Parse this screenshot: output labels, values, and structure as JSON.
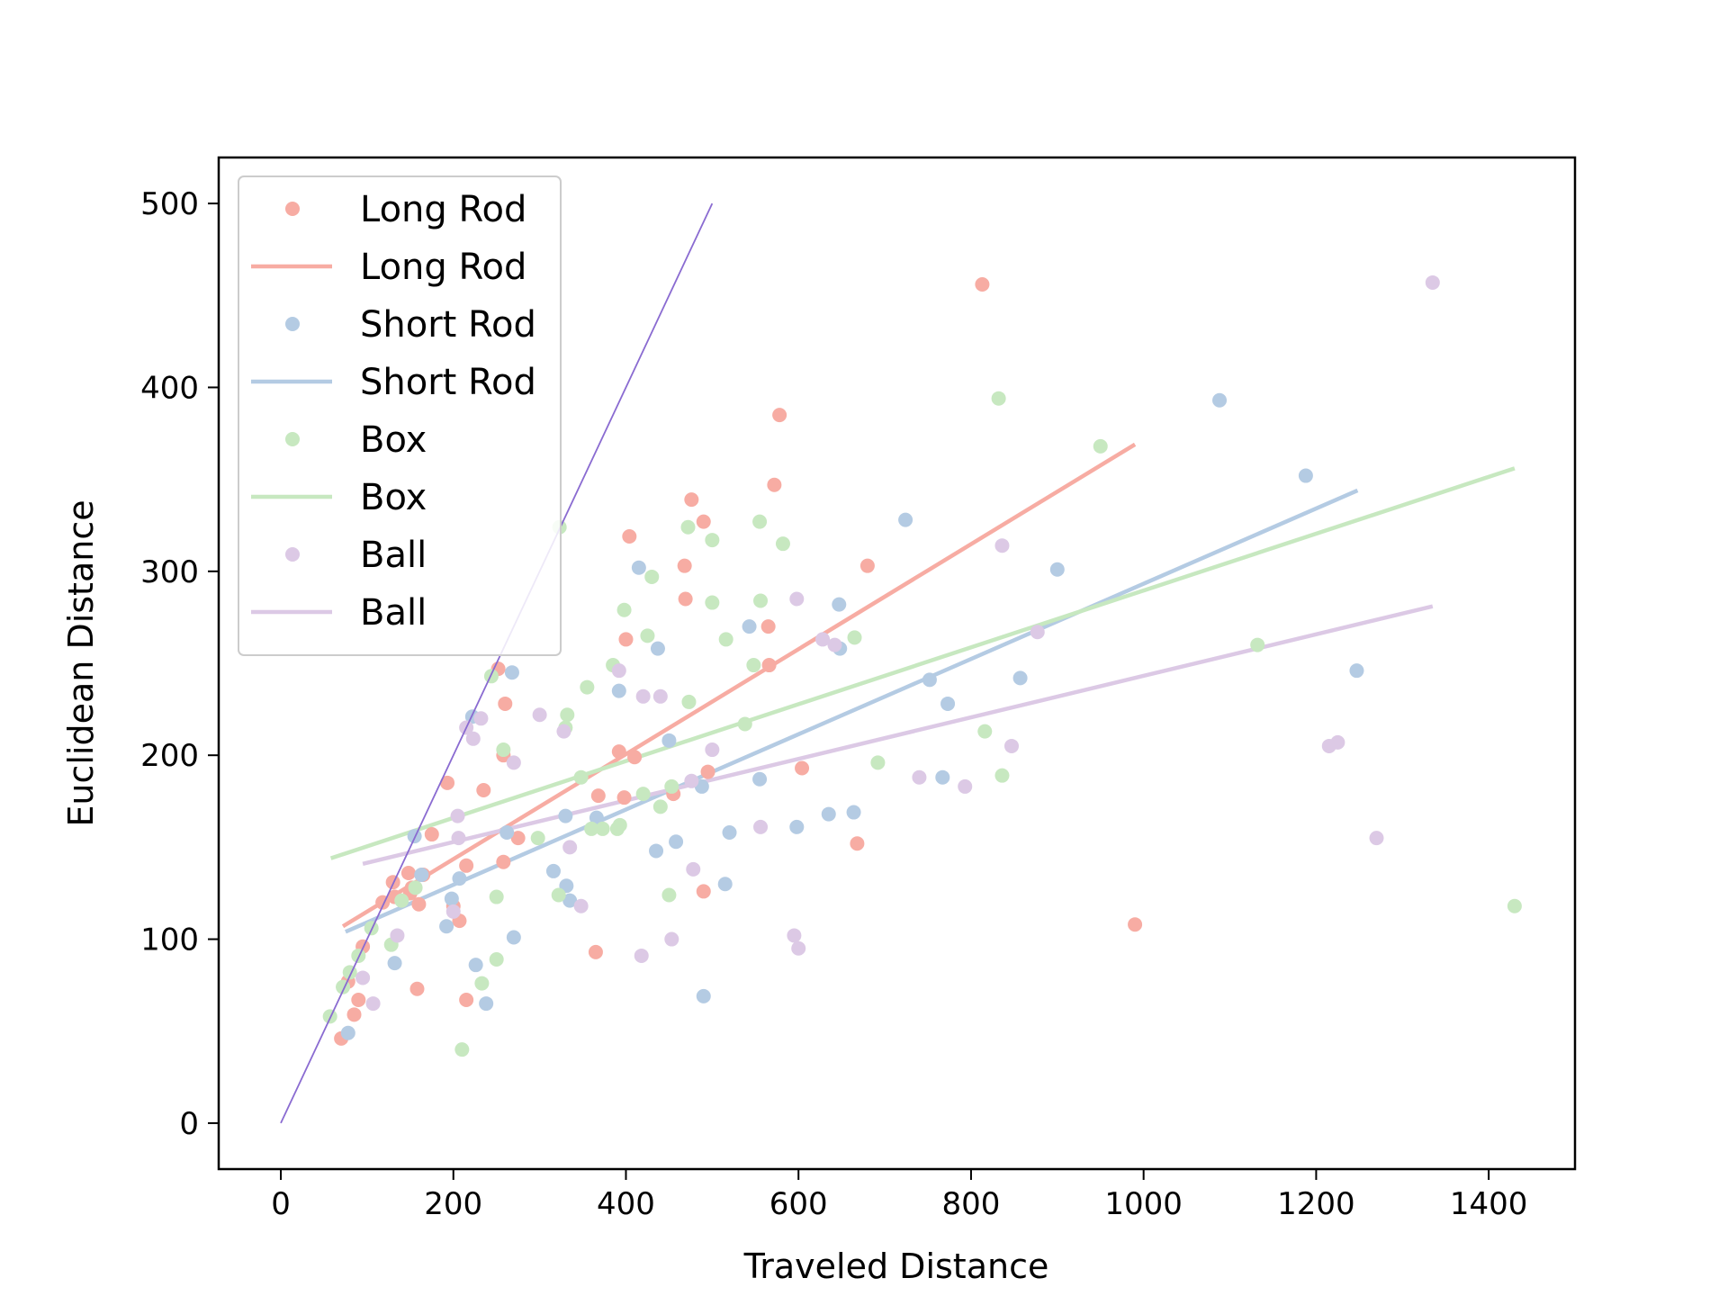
{
  "chart_data": {
    "type": "scatter",
    "title": "",
    "xlabel": "Traveled Distance",
    "ylabel": "Euclidean Distance",
    "xlim": [
      -72,
      1500
    ],
    "ylim": [
      -25,
      525
    ],
    "xticks": [
      0,
      200,
      400,
      600,
      800,
      1000,
      1200,
      1400
    ],
    "yticks": [
      0,
      100,
      200,
      300,
      400,
      500
    ],
    "grid": false,
    "legend_position": "top-left",
    "reference_line": {
      "x": [
        0,
        500
      ],
      "y": [
        0,
        500
      ],
      "color": "#8a6bd1"
    },
    "series": [
      {
        "name": "Long Rod",
        "color": "#f7aca3",
        "points": [
          [
            70,
            46
          ],
          [
            78,
            77
          ],
          [
            85,
            59
          ],
          [
            90,
            67
          ],
          [
            95,
            96
          ],
          [
            118,
            120
          ],
          [
            130,
            131
          ],
          [
            132,
            123
          ],
          [
            148,
            136
          ],
          [
            150,
            125
          ],
          [
            152,
            128
          ],
          [
            158,
            73
          ],
          [
            160,
            119
          ],
          [
            165,
            135
          ],
          [
            175,
            157
          ],
          [
            193,
            185
          ],
          [
            200,
            118
          ],
          [
            207,
            110
          ],
          [
            215,
            140
          ],
          [
            215,
            67
          ],
          [
            235,
            181
          ],
          [
            252,
            247
          ],
          [
            258,
            200
          ],
          [
            258,
            142
          ],
          [
            260,
            228
          ],
          [
            275,
            155
          ],
          [
            392,
            202
          ],
          [
            398,
            177
          ],
          [
            400,
            263
          ],
          [
            404,
            319
          ],
          [
            410,
            199
          ],
          [
            455,
            179
          ],
          [
            468,
            303
          ],
          [
            469,
            285
          ],
          [
            476,
            339
          ],
          [
            490,
            327
          ],
          [
            490,
            126
          ],
          [
            495,
            191
          ],
          [
            565,
            270
          ],
          [
            566,
            249
          ],
          [
            572,
            347
          ],
          [
            578,
            385
          ],
          [
            604,
            193
          ],
          [
            668,
            152
          ],
          [
            680,
            303
          ],
          [
            813,
            456
          ],
          [
            990,
            108
          ],
          [
            365,
            93
          ],
          [
            368,
            178
          ]
        ],
        "fit": {
          "x": [
            72,
            990
          ],
          "y": [
            107,
            369
          ]
        }
      },
      {
        "name": "Short Rod",
        "color": "#b4cbe3",
        "points": [
          [
            78,
            49
          ],
          [
            132,
            87
          ],
          [
            155,
            156
          ],
          [
            163,
            135
          ],
          [
            192,
            107
          ],
          [
            198,
            122
          ],
          [
            207,
            133
          ],
          [
            222,
            221
          ],
          [
            226,
            86
          ],
          [
            238,
            65
          ],
          [
            262,
            158
          ],
          [
            268,
            245
          ],
          [
            270,
            101
          ],
          [
            316,
            137
          ],
          [
            330,
            167
          ],
          [
            331,
            129
          ],
          [
            335,
            121
          ],
          [
            366,
            166
          ],
          [
            392,
            235
          ],
          [
            415,
            302
          ],
          [
            435,
            148
          ],
          [
            437,
            258
          ],
          [
            450,
            208
          ],
          [
            458,
            153
          ],
          [
            488,
            183
          ],
          [
            490,
            69
          ],
          [
            515,
            130
          ],
          [
            520,
            158
          ],
          [
            543,
            270
          ],
          [
            555,
            187
          ],
          [
            598,
            161
          ],
          [
            635,
            168
          ],
          [
            647,
            282
          ],
          [
            648,
            258
          ],
          [
            664,
            169
          ],
          [
            724,
            328
          ],
          [
            752,
            241
          ],
          [
            767,
            188
          ],
          [
            773,
            228
          ],
          [
            857,
            242
          ],
          [
            900,
            301
          ],
          [
            1088,
            393
          ],
          [
            1188,
            352
          ],
          [
            1247,
            246
          ]
        ],
        "fit": {
          "x": [
            75,
            1248
          ],
          "y": [
            104,
            344
          ]
        }
      },
      {
        "name": "Box",
        "color": "#c7e8c0",
        "points": [
          [
            57,
            58
          ],
          [
            72,
            74
          ],
          [
            80,
            82
          ],
          [
            90,
            91
          ],
          [
            105,
            106
          ],
          [
            128,
            97
          ],
          [
            140,
            121
          ],
          [
            156,
            128
          ],
          [
            210,
            40
          ],
          [
            233,
            76
          ],
          [
            244,
            243
          ],
          [
            250,
            123
          ],
          [
            250,
            89
          ],
          [
            258,
            203
          ],
          [
            298,
            155
          ],
          [
            322,
            124
          ],
          [
            323,
            324
          ],
          [
            330,
            215
          ],
          [
            332,
            222
          ],
          [
            348,
            188
          ],
          [
            355,
            237
          ],
          [
            360,
            160
          ],
          [
            373,
            160
          ],
          [
            385,
            249
          ],
          [
            390,
            160
          ],
          [
            393,
            162
          ],
          [
            398,
            279
          ],
          [
            420,
            179
          ],
          [
            425,
            265
          ],
          [
            430,
            297
          ],
          [
            440,
            172
          ],
          [
            450,
            124
          ],
          [
            453,
            183
          ],
          [
            472,
            324
          ],
          [
            473,
            229
          ],
          [
            500,
            317
          ],
          [
            500,
            283
          ],
          [
            516,
            263
          ],
          [
            538,
            217
          ],
          [
            548,
            249
          ],
          [
            555,
            327
          ],
          [
            556,
            284
          ],
          [
            582,
            315
          ],
          [
            665,
            264
          ],
          [
            692,
            196
          ],
          [
            816,
            213
          ],
          [
            832,
            394
          ],
          [
            836,
            189
          ],
          [
            950,
            368
          ],
          [
            1132,
            260
          ],
          [
            1430,
            118
          ]
        ],
        "fit": {
          "x": [
            58,
            1430
          ],
          "y": [
            144,
            356
          ]
        }
      },
      {
        "name": "Ball",
        "color": "#dcc9e5",
        "points": [
          [
            95,
            79
          ],
          [
            107,
            65
          ],
          [
            135,
            102
          ],
          [
            200,
            115
          ],
          [
            205,
            167
          ],
          [
            206,
            155
          ],
          [
            215,
            215
          ],
          [
            223,
            209
          ],
          [
            232,
            220
          ],
          [
            270,
            196
          ],
          [
            300,
            222
          ],
          [
            328,
            213
          ],
          [
            335,
            150
          ],
          [
            348,
            118
          ],
          [
            392,
            246
          ],
          [
            418,
            91
          ],
          [
            420,
            232
          ],
          [
            440,
            232
          ],
          [
            453,
            100
          ],
          [
            478,
            138
          ],
          [
            476,
            186
          ],
          [
            500,
            203
          ],
          [
            556,
            161
          ],
          [
            595,
            102
          ],
          [
            598,
            285
          ],
          [
            600,
            95
          ],
          [
            628,
            263
          ],
          [
            642,
            260
          ],
          [
            740,
            188
          ],
          [
            793,
            183
          ],
          [
            836,
            314
          ],
          [
            847,
            205
          ],
          [
            877,
            267
          ],
          [
            1215,
            205
          ],
          [
            1225,
            207
          ],
          [
            1270,
            155
          ],
          [
            1335,
            457
          ]
        ],
        "fit": {
          "x": [
            95,
            1335
          ],
          "y": [
            141,
            281
          ]
        }
      }
    ]
  }
}
